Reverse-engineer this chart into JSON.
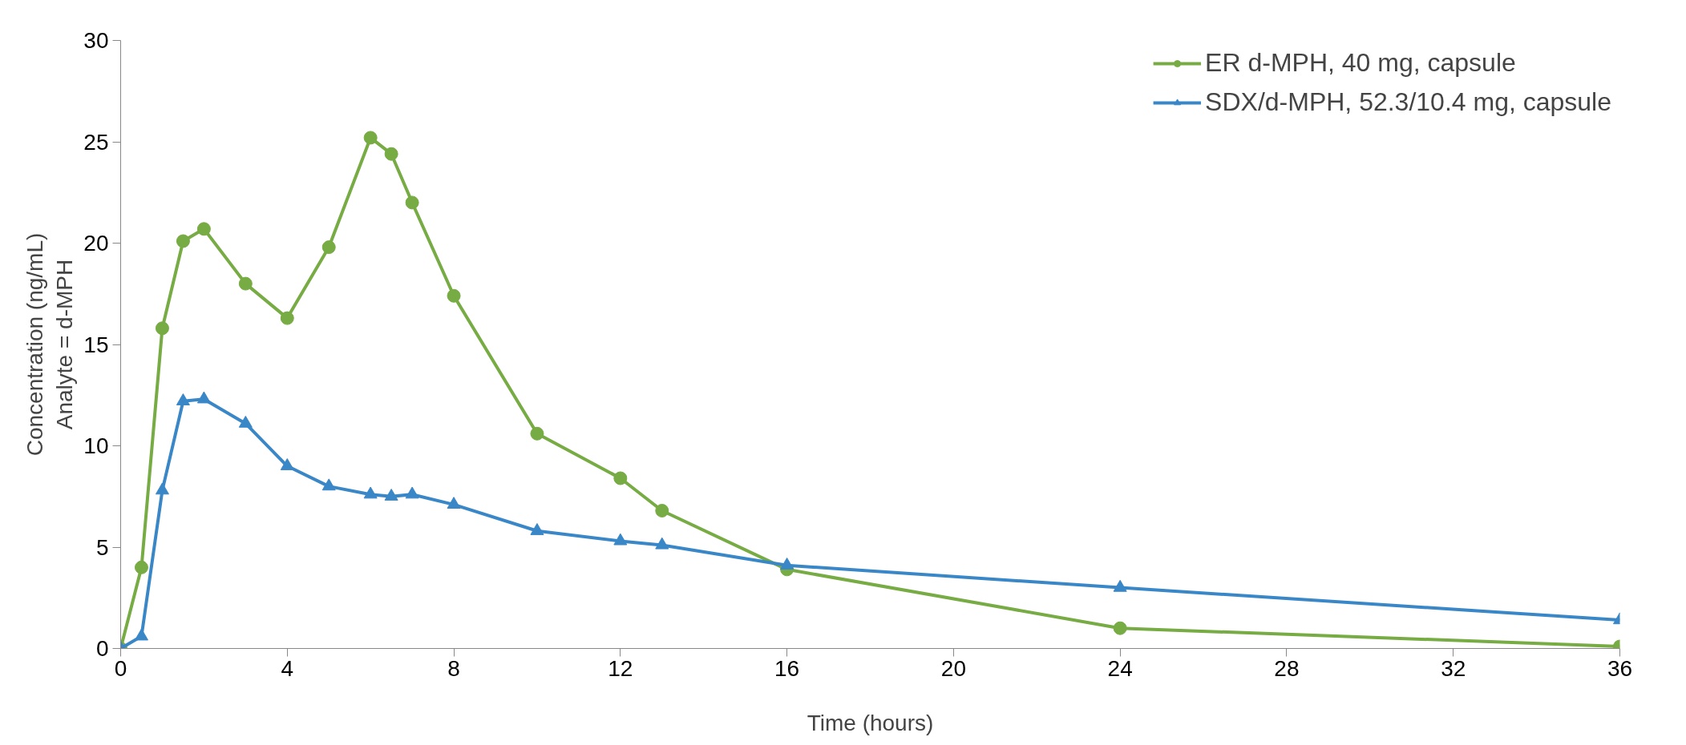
{
  "chart_data": {
    "type": "line",
    "xlabel": "Time (hours)",
    "ylabel": "Concentration (ng/mL)\nAnalyte = d-MPH",
    "xlim": [
      0,
      36
    ],
    "xticks": [
      0,
      4,
      8,
      12,
      16,
      20,
      24,
      28,
      32,
      36
    ],
    "ylim": [
      0,
      30
    ],
    "yticks": [
      0,
      5,
      10,
      15,
      20,
      25,
      30
    ],
    "grid": false,
    "legend": "top right",
    "line_style": "solid",
    "series": [
      {
        "name": "ER d-MPH, 40 mg, capsule",
        "color": "#77ab43",
        "marker": "circle",
        "x": [
          0,
          0.5,
          1,
          1.5,
          2,
          3,
          4,
          5,
          6,
          6.5,
          7,
          8,
          10,
          12,
          13,
          16,
          24,
          36
        ],
        "values": [
          0,
          4.0,
          15.8,
          20.1,
          20.7,
          18.0,
          16.3,
          19.8,
          25.2,
          24.4,
          22.0,
          17.4,
          10.6,
          8.4,
          6.8,
          3.9,
          1.0,
          0.1
        ]
      },
      {
        "name": "SDX/d-MPH, 52.3/10.4 mg, capsule",
        "color": "#3a87c8",
        "marker": "triangle",
        "x": [
          0,
          0.5,
          1,
          1.5,
          2,
          3,
          4,
          5,
          6,
          6.5,
          7,
          8,
          10,
          12,
          13,
          16,
          24,
          36
        ],
        "values": [
          0,
          0.6,
          7.8,
          12.2,
          12.3,
          11.1,
          9.0,
          8.0,
          7.6,
          7.5,
          7.6,
          7.1,
          5.8,
          5.3,
          5.1,
          4.1,
          3.0,
          1.4
        ]
      }
    ]
  }
}
